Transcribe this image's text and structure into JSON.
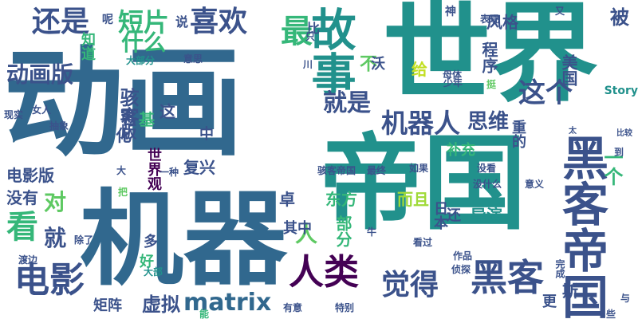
{
  "palette": {
    "background": "#ffffff",
    "dark_purple": "#440154",
    "dark_blue": "#3b528b",
    "slate_blue": "#31688e",
    "teal": "#21918c",
    "green": "#35b779",
    "light_green": "#5ec962",
    "lime": "#a0da39",
    "yellow_green": "#c2df23"
  },
  "words": [
    {
      "text": "动画",
      "color": "#31688e",
      "orientation": "horizontal"
    },
    {
      "text": "世界",
      "color": "#21918c",
      "orientation": "horizontal"
    },
    {
      "text": "机器",
      "color": "#31688e",
      "orientation": "horizontal"
    },
    {
      "text": "帝国",
      "color": "#21918c",
      "orientation": "horizontal"
    },
    {
      "text": "黑客帝国",
      "color": "#3b528b",
      "orientation": "vertical"
    },
    {
      "text": "故事",
      "color": "#21918c",
      "orientation": "vertical"
    },
    {
      "text": "黑客",
      "color": "#3b528b",
      "orientation": "horizontal"
    },
    {
      "text": "电影",
      "color": "#3b528b",
      "orientation": "horizontal"
    },
    {
      "text": "人类",
      "color": "#440154",
      "orientation": "horizontal"
    },
    {
      "text": "最",
      "color": "#35b779",
      "orientation": "horizontal"
    },
    {
      "text": "喜欢",
      "color": "#3b528b",
      "orientation": "horizontal"
    },
    {
      "text": "觉得",
      "color": "#3b528b",
      "orientation": "horizontal"
    },
    {
      "text": "还是",
      "color": "#3b528b",
      "orientation": "horizontal"
    },
    {
      "text": "机器人",
      "color": "#3b528b",
      "orientation": "horizontal"
    },
    {
      "text": "看",
      "color": "#35b779",
      "orientation": "horizontal"
    },
    {
      "text": "这个",
      "color": "#3b528b",
      "orientation": "horizontal"
    },
    {
      "text": "短片",
      "color": "#35b779",
      "orientation": "horizontal"
    },
    {
      "text": "就是",
      "color": "#3b528b",
      "orientation": "horizontal"
    },
    {
      "text": "matrix",
      "color": "#31688e",
      "orientation": "horizontal"
    },
    {
      "text": "就",
      "color": "#3b528b",
      "orientation": "horizontal"
    },
    {
      "text": "动画版",
      "color": "#3b528b",
      "orientation": "horizontal"
    },
    {
      "text": "人",
      "color": "#5ec962",
      "orientation": "horizontal"
    },
    {
      "text": "被",
      "color": "#3b528b",
      "orientation": "horizontal"
    },
    {
      "text": "什么",
      "color": "#35b779",
      "orientation": "horizontal"
    },
    {
      "text": "对",
      "color": "#5ec962",
      "orientation": "horizontal"
    },
    {
      "text": "一个",
      "color": "#35b779",
      "orientation": "vertical"
    },
    {
      "text": "骇客",
      "color": "#3b528b",
      "orientation": "vertical"
    },
    {
      "text": "思维",
      "color": "#3b528b",
      "orientation": "horizontal"
    },
    {
      "text": "导演",
      "color": "#21918c",
      "orientation": "horizontal"
    },
    {
      "text": "日本",
      "color": "#3b528b",
      "orientation": "vertical"
    },
    {
      "text": "补充",
      "color": "#35b779",
      "orientation": "horizontal"
    },
    {
      "text": "美国",
      "color": "#3b528b",
      "orientation": "vertical"
    },
    {
      "text": "程序",
      "color": "#3b528b",
      "orientation": "vertical"
    },
    {
      "text": "电影版",
      "color": "#3b528b",
      "orientation": "horizontal"
    },
    {
      "text": "没有",
      "color": "#3b528b",
      "orientation": "horizontal"
    },
    {
      "text": "虚拟",
      "color": "#3b528b",
      "orientation": "horizontal"
    },
    {
      "text": "复兴",
      "color": "#3b528b",
      "orientation": "horizontal"
    },
    {
      "text": "东方",
      "color": "#35b779",
      "orientation": "horizontal"
    },
    {
      "text": "影版",
      "color": "#3b528b",
      "orientation": "vertical"
    },
    {
      "text": "卓",
      "color": "#3b528b",
      "orientation": "horizontal"
    },
    {
      "text": "其中",
      "color": "#3b528b",
      "orientation": "horizontal"
    },
    {
      "text": "化",
      "color": "#3b528b",
      "orientation": "horizontal"
    },
    {
      "text": "基",
      "color": "#35b779",
      "orientation": "horizontal"
    },
    {
      "text": "不",
      "color": "#5ec962",
      "orientation": "vertical"
    },
    {
      "text": "而且",
      "color": "#a0da39",
      "orientation": "horizontal"
    },
    {
      "text": "世界观",
      "color": "#440154",
      "orientation": "vertical"
    },
    {
      "text": "斯",
      "color": "#3b528b",
      "orientation": "horizontal"
    },
    {
      "text": "还",
      "color": "#3b528b",
      "orientation": "vertical"
    },
    {
      "text": "部分",
      "color": "#35b779",
      "orientation": "vertical"
    },
    {
      "text": "矩阵",
      "color": "#3b528b",
      "orientation": "horizontal"
    },
    {
      "text": "中",
      "color": "#3b528b",
      "orientation": "horizontal"
    },
    {
      "text": "多",
      "color": "#3b528b",
      "orientation": "horizontal"
    },
    {
      "text": "好",
      "color": "#35b779",
      "orientation": "horizontal"
    },
    {
      "text": "这",
      "color": "#3b528b",
      "orientation": "horizontal"
    },
    {
      "text": "重的",
      "color": "#3b528b",
      "orientation": "vertical"
    },
    {
      "text": "给",
      "color": "#c2df23",
      "orientation": "horizontal"
    },
    {
      "text": "风格",
      "color": "#3b528b",
      "orientation": "horizontal"
    },
    {
      "text": "知道",
      "color": "#35b779",
      "orientation": "vertical"
    },
    {
      "text": "说",
      "color": "#3b528b",
      "orientation": "horizontal"
    },
    {
      "text": "比",
      "color": "#3b528b",
      "orientation": "horizontal"
    },
    {
      "text": "沃",
      "color": "#3b528b",
      "orientation": "horizontal"
    },
    {
      "text": "更",
      "color": "#3b528b",
      "orientation": "horizontal"
    },
    {
      "text": "神",
      "color": "#3b528b",
      "orientation": "horizontal"
    },
    {
      "text": "呢",
      "color": "#3b528b",
      "orientation": "horizontal"
    },
    {
      "text": "大部分",
      "color": "#21918c",
      "orientation": "horizontal"
    },
    {
      "text": "意思",
      "color": "#3b528b",
      "orientation": "horizontal"
    },
    {
      "text": "表现",
      "color": "#3b528b",
      "orientation": "horizontal"
    },
    {
      "text": "Story",
      "color": "#21918c",
      "orientation": "horizontal"
    },
    {
      "text": "母体",
      "color": "#3b528b",
      "orientation": "horizontal"
    },
    {
      "text": "少年",
      "color": "#3b528b",
      "orientation": "horizontal"
    },
    {
      "text": "挺",
      "color": "#5ec962",
      "orientation": "horizontal"
    },
    {
      "text": "川",
      "color": "#3b528b",
      "orientation": "horizontal"
    },
    {
      "text": "现实",
      "color": "#3b528b",
      "orientation": "horizontal"
    },
    {
      "text": "女人",
      "color": "#3b528b",
      "orientation": "horizontal"
    },
    {
      "text": "抽象",
      "color": "#3b528b",
      "orientation": "horizontal"
    },
    {
      "text": "太",
      "color": "#3b528b",
      "orientation": "horizontal"
    },
    {
      "text": "比较",
      "color": "#3b528b",
      "orientation": "horizontal"
    },
    {
      "text": "到",
      "color": "#3b528b",
      "orientation": "horizontal"
    },
    {
      "text": "一种",
      "color": "#3b528b",
      "orientation": "horizontal"
    },
    {
      "text": "骇客帝国",
      "color": "#3b528b",
      "orientation": "horizontal"
    },
    {
      "text": "最终",
      "color": "#3b528b",
      "orientation": "horizontal"
    },
    {
      "text": "如果",
      "color": "#3b528b",
      "orientation": "horizontal"
    },
    {
      "text": "没看",
      "color": "#3b528b",
      "orientation": "horizontal"
    },
    {
      "text": "没什么",
      "color": "#3b528b",
      "orientation": "horizontal"
    },
    {
      "text": "意义",
      "color": "#3b528b",
      "orientation": "horizontal"
    },
    {
      "text": "把",
      "color": "#5ec962",
      "orientation": "horizontal"
    },
    {
      "text": "除了",
      "color": "#3b528b",
      "orientation": "horizontal"
    },
    {
      "text": "牛",
      "color": "#3b528b",
      "orientation": "horizontal"
    },
    {
      "text": "看过",
      "color": "#3b528b",
      "orientation": "horizontal"
    },
    {
      "text": "作品",
      "color": "#3b528b",
      "orientation": "horizontal"
    },
    {
      "text": "侦探",
      "color": "#3b528b",
      "orientation": "horizontal"
    },
    {
      "text": "大部",
      "color": "#21918c",
      "orientation": "horizontal"
    },
    {
      "text": "渡边",
      "color": "#3b528b",
      "orientation": "horizontal"
    },
    {
      "text": "有意",
      "color": "#3b528b",
      "orientation": "horizontal"
    },
    {
      "text": "特别",
      "color": "#3b528b",
      "orientation": "horizontal"
    },
    {
      "text": "能",
      "color": "#35b779",
      "orientation": "horizontal"
    },
    {
      "text": "与",
      "color": "#3b528b",
      "orientation": "horizontal"
    },
    {
      "text": "些",
      "color": "#3b528b",
      "orientation": "horizontal"
    },
    {
      "text": "完成",
      "color": "#3b528b",
      "orientation": "vertical"
    },
    {
      "text": "大",
      "color": "#3b528b",
      "orientation": "horizontal"
    },
    {
      "text": "又",
      "color": "#3b528b",
      "orientation": "horizontal"
    },
    {
      "text": "只",
      "color": "#3b528b",
      "orientation": "horizontal"
    }
  ]
}
